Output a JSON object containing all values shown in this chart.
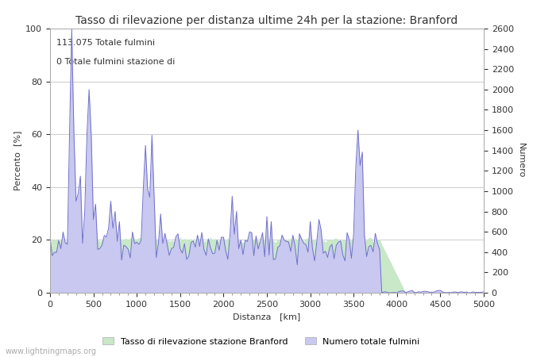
{
  "title": "Tasso di rilevazione per distanza ultime 24h per la stazione: Branford",
  "xlabel": "Distanza   [km]",
  "ylabel_left": "Percento  [%]",
  "ylabel_right": "Numero",
  "annotation_line1": "113.075 Totale fulmini",
  "annotation_line2": "0 Totale fulmini stazione di",
  "legend_label1": "Tasso di rilevazione stazione Branford",
  "legend_label2": "Numero totale fulmini",
  "watermark": "www.lightningmaps.org",
  "xlim": [
    0,
    5000
  ],
  "ylim_left": [
    0,
    100
  ],
  "ylim_right": [
    0,
    2600
  ],
  "xticks": [
    0,
    500,
    1000,
    1500,
    2000,
    2500,
    3000,
    3500,
    4000,
    4500,
    5000
  ],
  "yticks_left": [
    0,
    20,
    40,
    60,
    80,
    100
  ],
  "yticks_right": [
    0,
    200,
    400,
    600,
    800,
    1000,
    1200,
    1400,
    1600,
    1800,
    2000,
    2200,
    2400,
    2600
  ],
  "fill_color_blue": "#c8c8f0",
  "fill_color_green": "#c8e8c8",
  "line_color_blue": "#7070cc",
  "bg_color": "#ffffff",
  "grid_color": "#cccccc",
  "font_color": "#333333",
  "title_fontsize": 10,
  "label_fontsize": 8,
  "tick_fontsize": 8,
  "annotation_fontsize": 8
}
